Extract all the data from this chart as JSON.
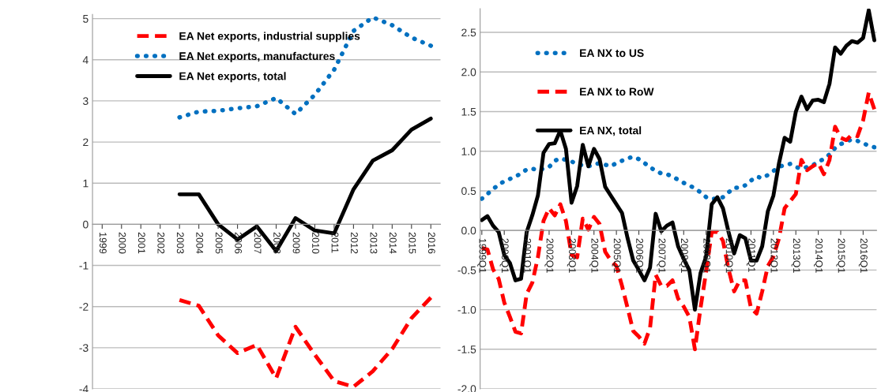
{
  "chart_data": [
    {
      "type": "line",
      "categories": [
        "1999",
        "2000",
        "2001",
        "2002",
        "2003",
        "2004",
        "2005",
        "2006",
        "2007",
        "2008",
        "2009",
        "2010",
        "2011",
        "2012",
        "2013",
        "2014",
        "2015",
        "2016"
      ],
      "ylim": [
        -4,
        5.1
      ],
      "yticks": [
        -4,
        -3,
        -2,
        -1,
        0,
        1,
        2,
        3,
        4,
        5
      ],
      "grid": "y",
      "legend": "top left",
      "series": [
        {
          "name": "EA Net exports, industrial supplies",
          "color": "#ff0000",
          "line_style": "dashed",
          "values": [
            null,
            null,
            null,
            null,
            -1.84,
            -1.98,
            -2.7,
            -3.13,
            -2.93,
            -3.74,
            -2.49,
            -3.17,
            -3.81,
            -3.95,
            -3.57,
            -3.03,
            -2.28,
            -1.78
          ]
        },
        {
          "name": "EA Net exports, manufactures",
          "color": "#0070c0",
          "line_style": "dotted",
          "values": [
            null,
            null,
            null,
            null,
            2.6,
            2.74,
            2.76,
            2.82,
            2.87,
            3.07,
            2.68,
            3.15,
            3.76,
            4.7,
            5.03,
            4.84,
            4.54,
            4.34
          ]
        },
        {
          "name": "EA Net exports, total",
          "color": "#000000",
          "line_style": "solid",
          "values": [
            null,
            null,
            null,
            null,
            0.73,
            0.73,
            0.0,
            -0.37,
            -0.05,
            -0.65,
            0.15,
            -0.15,
            -0.22,
            0.85,
            1.55,
            1.8,
            2.3,
            2.57
          ]
        }
      ]
    },
    {
      "type": "line",
      "categories": [
        "1999Q1",
        null,
        null,
        null,
        "2000Q1",
        null,
        null,
        null,
        "2001Q1",
        null,
        null,
        null,
        "2002Q1",
        null,
        null,
        null,
        "2003Q1",
        null,
        null,
        null,
        "2004Q1",
        null,
        null,
        null,
        "2005Q1",
        null,
        null,
        null,
        "2006Q1",
        null,
        null,
        null,
        "2007Q1",
        null,
        null,
        null,
        "2008Q1",
        null,
        null,
        null,
        "2009Q1",
        null,
        null,
        null,
        "2010Q1",
        null,
        null,
        null,
        "2011Q1",
        null,
        null,
        null,
        "2012Q1",
        null,
        null,
        null,
        "2013Q1",
        null,
        null,
        null,
        "2014Q1",
        null,
        null,
        null,
        "2015Q1",
        null,
        null,
        null,
        "2016Q1",
        null,
        null
      ],
      "ylim": [
        -2,
        2.8
      ],
      "yticks": [
        {
          "value": -2,
          "label": "-2.0"
        },
        {
          "value": -1.5,
          "label": "-1.5"
        },
        {
          "value": -1,
          "label": "-1.0"
        },
        {
          "value": -0.5,
          "label": "-0.5"
        },
        {
          "value": 0,
          "label": "0.0"
        },
        {
          "value": 0.5,
          "label": "0.5"
        },
        {
          "value": 1,
          "label": "1.0"
        },
        {
          "value": 1.5,
          "label": "1.5"
        },
        {
          "value": 2,
          "label": "2.0"
        },
        {
          "value": 2.5,
          "label": "2.5"
        }
      ],
      "grid": "y",
      "legend": "top left",
      "series": [
        {
          "name": "EA NX to US",
          "color": "#0070c0",
          "line_style": "dotted",
          "values": [
            0.4,
            0.46,
            0.52,
            0.58,
            0.62,
            0.65,
            0.68,
            0.72,
            0.77,
            0.78,
            0.76,
            0.78,
            0.8,
            0.88,
            0.91,
            0.89,
            0.87,
            0.84,
            0.82,
            0.81,
            0.83,
            0.85,
            0.83,
            0.81,
            0.85,
            0.88,
            0.91,
            0.93,
            0.9,
            0.85,
            0.8,
            0.75,
            0.72,
            0.71,
            0.68,
            0.64,
            0.6,
            0.57,
            0.53,
            0.48,
            0.42,
            0.4,
            0.4,
            0.42,
            0.48,
            0.54,
            0.54,
            0.57,
            0.63,
            0.68,
            0.66,
            0.7,
            0.75,
            0.8,
            0.83,
            0.84,
            0.8,
            0.78,
            0.8,
            0.82,
            0.87,
            0.9,
            0.96,
            1.04,
            1.09,
            1.12,
            1.15,
            1.13,
            1.1,
            1.07,
            1.05
          ]
        },
        {
          "name": "EA NX to RoW",
          "color": "#ff0000",
          "line_style": "dashed",
          "values": [
            -0.22,
            -0.24,
            -0.49,
            -0.61,
            -0.91,
            -1.09,
            -1.28,
            -1.3,
            -0.8,
            -0.66,
            -0.34,
            0.12,
            0.28,
            0.19,
            0.33,
            0.12,
            -0.31,
            -0.34,
            0.15,
            0.01,
            0.17,
            0.08,
            -0.27,
            -0.38,
            -0.45,
            -0.7,
            -0.98,
            -1.27,
            -1.34,
            -1.43,
            -1.23,
            -0.56,
            -0.7,
            -0.7,
            -0.63,
            -0.86,
            -0.96,
            -1.09,
            -1.5,
            -0.98,
            -0.52,
            -0.02,
            -0.02,
            -0.13,
            -0.49,
            -0.77,
            -0.63,
            -0.63,
            -0.98,
            -1.05,
            -0.77,
            -0.45,
            -0.33,
            -0.1,
            0.28,
            0.37,
            0.46,
            0.89,
            0.76,
            0.81,
            0.85,
            0.71,
            0.89,
            1.31,
            1.17,
            1.14,
            1.21,
            1.19,
            1.39,
            1.74,
            1.53
          ]
        },
        {
          "name": "EA NX, total",
          "color": "#000000",
          "line_style": "solid",
          "values": [
            0.13,
            0.18,
            0.06,
            -0.02,
            -0.31,
            -0.41,
            -0.63,
            -0.61,
            -0.02,
            0.19,
            0.44,
            0.98,
            1.09,
            1.1,
            1.26,
            1.03,
            0.35,
            0.56,
            1.08,
            0.81,
            1.03,
            0.9,
            0.55,
            0.44,
            0.33,
            0.22,
            -0.1,
            -0.38,
            -0.5,
            -0.63,
            -0.47,
            0.21,
            -0.01,
            0.06,
            0.1,
            -0.2,
            -0.36,
            -0.5,
            -1.0,
            -0.54,
            -0.33,
            0.33,
            0.42,
            0.28,
            -0.02,
            -0.29,
            -0.06,
            -0.1,
            -0.38,
            -0.38,
            -0.2,
            0.24,
            0.44,
            0.85,
            1.17,
            1.12,
            1.5,
            1.69,
            1.53,
            1.64,
            1.65,
            1.62,
            1.85,
            2.31,
            2.23,
            2.33,
            2.39,
            2.37,
            2.43,
            2.78,
            2.4
          ]
        }
      ]
    }
  ]
}
